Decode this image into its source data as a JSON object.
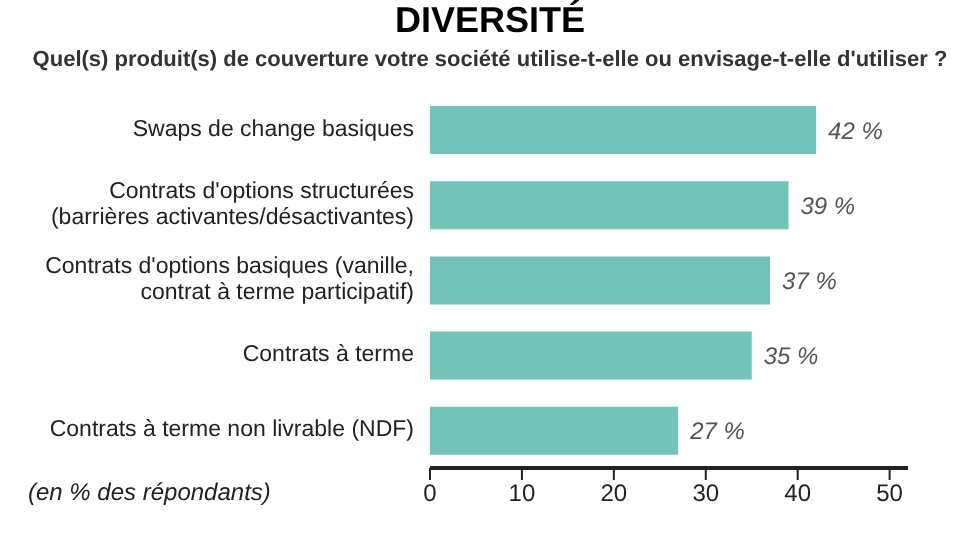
{
  "chart_data": {
    "type": "bar",
    "orientation": "horizontal",
    "title": "DIVERSITÉ",
    "subtitle": "Quel(s) produit(s) de couverture votre société utilise-t-elle ou envisage-t-elle d'utiliser ?",
    "xlabel": "(en % des répondants)",
    "categories": [
      "Swaps de change basiques",
      "Contrats d'options structurées (barrières activantes/désactivantes)",
      "Contrats d'options basiques (vanille, contrat à terme participatif)",
      "Contrats à terme",
      "Contrats à terme non livrable (NDF)"
    ],
    "values": [
      42,
      39,
      37,
      35,
      27
    ],
    "color": "#72c3b8",
    "value_labels": [
      "42 %",
      "39 %",
      "37 %",
      "35 %",
      "27 %"
    ],
    "xlim": [
      0,
      52
    ],
    "xticks": [
      0,
      10,
      20,
      30,
      40,
      50
    ]
  }
}
